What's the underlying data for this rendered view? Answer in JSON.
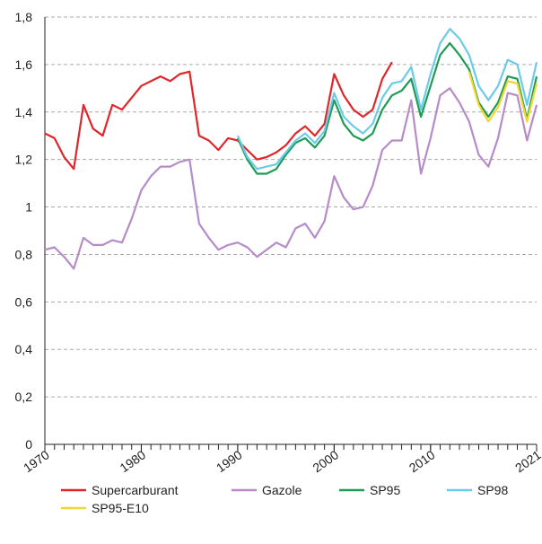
{
  "chart_data": {
    "type": "line",
    "x": [
      1970,
      1971,
      1972,
      1973,
      1974,
      1975,
      1976,
      1977,
      1978,
      1979,
      1980,
      1981,
      1982,
      1983,
      1984,
      1985,
      1986,
      1987,
      1988,
      1989,
      1990,
      1991,
      1992,
      1993,
      1994,
      1995,
      1996,
      1997,
      1998,
      1999,
      2000,
      2001,
      2002,
      2003,
      2004,
      2005,
      2006,
      2007,
      2008,
      2009,
      2010,
      2011,
      2012,
      2013,
      2014,
      2015,
      2016,
      2017,
      2018,
      2019,
      2020,
      2021
    ],
    "series": [
      {
        "name": "Supercarburant",
        "color": "#e0262b",
        "values": [
          1.31,
          1.29,
          1.21,
          1.16,
          1.43,
          1.33,
          1.3,
          1.43,
          1.41,
          1.46,
          1.51,
          1.53,
          1.55,
          1.53,
          1.56,
          1.57,
          1.3,
          1.28,
          1.24,
          1.29,
          1.28,
          1.24,
          1.2,
          1.21,
          1.23,
          1.26,
          1.31,
          1.34,
          1.3,
          1.35,
          1.56,
          1.47,
          1.41,
          1.38,
          1.41,
          1.54,
          1.61,
          null,
          null,
          null,
          null,
          null,
          null,
          null,
          null,
          null,
          null,
          null,
          null,
          null,
          null,
          null
        ]
      },
      {
        "name": "Gazole",
        "color": "#b58cc8",
        "values": [
          0.82,
          0.83,
          0.79,
          0.74,
          0.87,
          0.84,
          0.84,
          0.86,
          0.85,
          0.95,
          1.07,
          1.13,
          1.17,
          1.17,
          1.19,
          1.2,
          0.93,
          0.87,
          0.82,
          0.84,
          0.85,
          0.83,
          0.79,
          0.82,
          0.85,
          0.83,
          0.91,
          0.93,
          0.87,
          0.94,
          1.13,
          1.04,
          0.99,
          1.0,
          1.09,
          1.24,
          1.28,
          1.28,
          1.45,
          1.14,
          1.29,
          1.47,
          1.5,
          1.44,
          1.36,
          1.22,
          1.17,
          1.29,
          1.48,
          1.47,
          1.28,
          1.43
        ]
      },
      {
        "name": "SP95",
        "color": "#1e9b55",
        "values": [
          null,
          null,
          null,
          null,
          null,
          null,
          null,
          null,
          null,
          null,
          null,
          null,
          null,
          null,
          null,
          null,
          null,
          null,
          null,
          null,
          1.29,
          1.2,
          1.14,
          1.14,
          1.16,
          1.22,
          1.27,
          1.29,
          1.25,
          1.3,
          1.45,
          1.35,
          1.3,
          1.28,
          1.31,
          1.41,
          1.47,
          1.49,
          1.54,
          1.38,
          1.51,
          1.64,
          1.69,
          1.64,
          1.58,
          1.44,
          1.38,
          1.44,
          1.55,
          1.54,
          1.37,
          1.55
        ]
      },
      {
        "name": "SP98",
        "color": "#6ccbe8",
        "values": [
          null,
          null,
          null,
          null,
          null,
          null,
          null,
          null,
          null,
          null,
          null,
          null,
          null,
          null,
          null,
          null,
          null,
          null,
          null,
          null,
          1.3,
          1.21,
          1.16,
          1.17,
          1.18,
          1.23,
          1.28,
          1.31,
          1.27,
          1.32,
          1.48,
          1.38,
          1.34,
          1.31,
          1.35,
          1.46,
          1.52,
          1.53,
          1.59,
          1.41,
          1.56,
          1.69,
          1.75,
          1.71,
          1.64,
          1.51,
          1.45,
          1.51,
          1.62,
          1.6,
          1.43,
          1.61
        ]
      },
      {
        "name": "SP95-E10",
        "color": "#f2d630",
        "values": [
          null,
          null,
          null,
          null,
          null,
          null,
          null,
          null,
          null,
          null,
          null,
          null,
          null,
          null,
          null,
          null,
          null,
          null,
          null,
          null,
          null,
          null,
          null,
          null,
          null,
          null,
          null,
          null,
          null,
          null,
          null,
          null,
          null,
          null,
          null,
          null,
          null,
          null,
          null,
          null,
          null,
          null,
          null,
          null,
          1.57,
          1.43,
          1.36,
          1.42,
          1.53,
          1.52,
          1.36,
          1.52
        ]
      }
    ],
    "xlim": [
      1970,
      2021
    ],
    "xticks": [
      1970,
      1980,
      1990,
      2000,
      2010,
      2021
    ],
    "ylim": [
      0,
      1.8
    ],
    "yticks": [
      0,
      {
        "value": 0.2,
        "label": "0,2"
      },
      {
        "value": 0.4,
        "label": "0,4"
      },
      {
        "value": 0.6,
        "label": "0,6"
      },
      {
        "value": 0.8,
        "label": "0,8"
      },
      1,
      {
        "value": 1.2,
        "label": "1,2"
      },
      {
        "value": 1.4,
        "label": "1,4"
      },
      {
        "value": 1.6,
        "label": "1,6"
      },
      {
        "value": 1.8,
        "label": "1,8"
      }
    ],
    "grid": true
  }
}
